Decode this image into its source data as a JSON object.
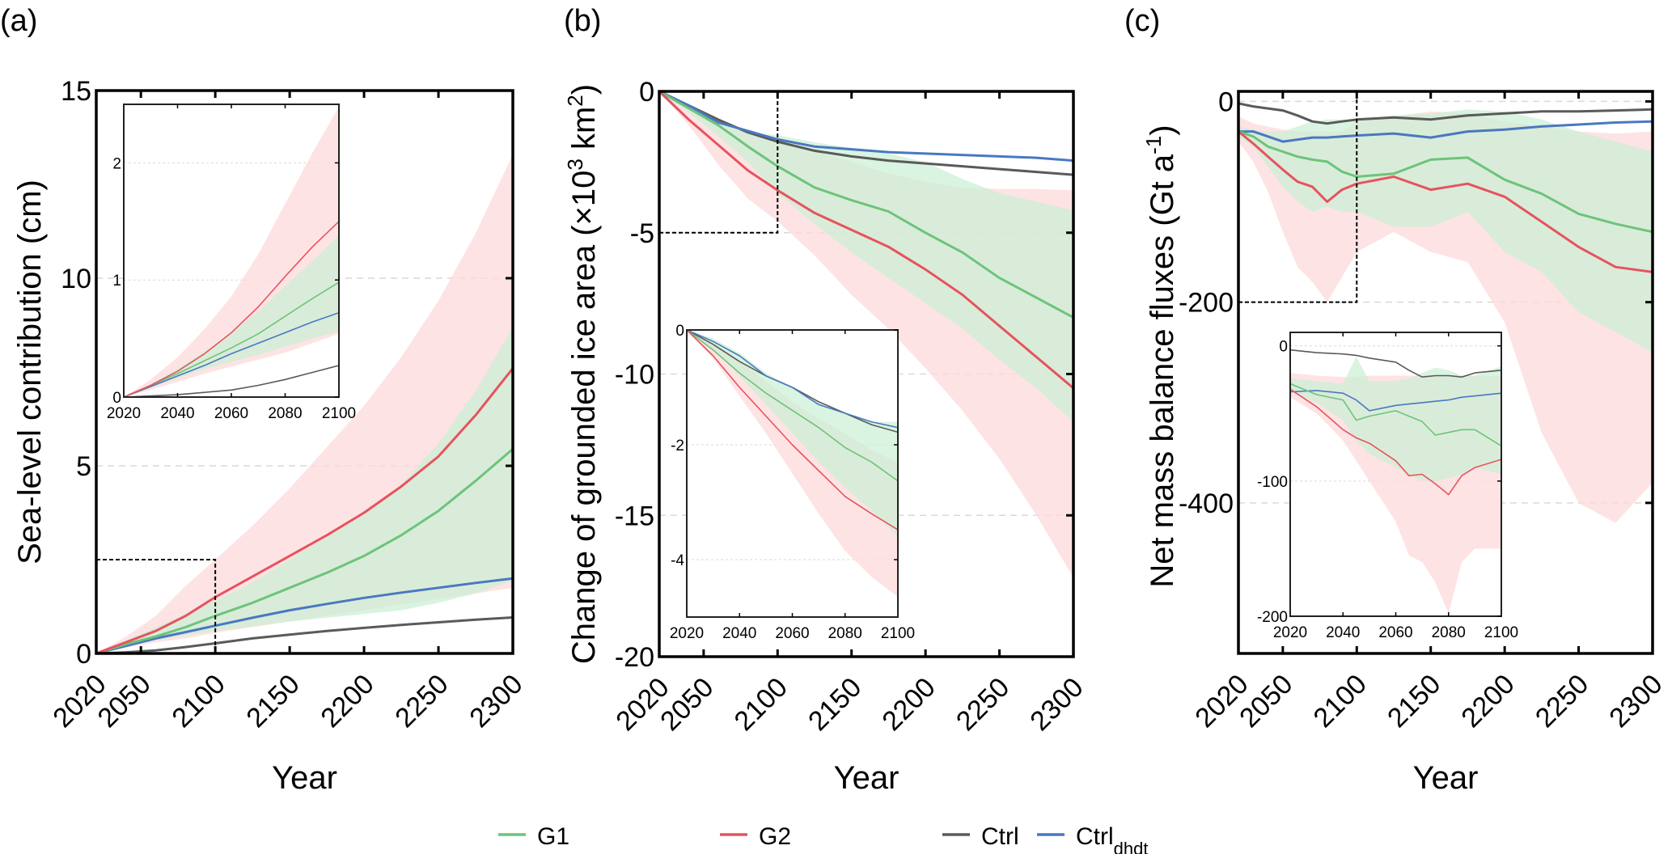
{
  "legend": {
    "items": [
      {
        "key": "G1",
        "label": "G1",
        "sub": "",
        "color": "#6cc47a"
      },
      {
        "key": "G2",
        "label": "G2",
        "sub": "",
        "color": "#e5545e"
      },
      {
        "key": "Ctrl",
        "label": "Ctrl",
        "sub": "",
        "color": "#5a5a5a"
      },
      {
        "key": "Ctrl_dhdt",
        "label": "Ctrl",
        "sub": "dhdt",
        "color": "#4a78c0"
      }
    ],
    "placement": "bottom-center"
  },
  "colors": {
    "G1_band": "#c9f0d4",
    "G2_band": "#fdd9db",
    "overlap_band": "#eddcc9",
    "grid": "#d9d9d9",
    "box": "#000000"
  },
  "chart_data": [
    {
      "id": "a",
      "panel_label": "(a)",
      "type": "line",
      "title": "",
      "xlabel": "Year",
      "ylabel": "Sea-level contribution (cm)",
      "xlim": [
        2020,
        2300
      ],
      "ylim": [
        0,
        15
      ],
      "xticks": [
        2020,
        2050,
        2100,
        2150,
        2200,
        2250,
        2300
      ],
      "yticks": [
        0,
        5,
        10,
        15
      ],
      "ygrid": [
        5,
        10
      ],
      "zoom_box": {
        "x": [
          2020,
          2100
        ],
        "y": [
          0,
          2.5
        ]
      },
      "x": [
        2020,
        2040,
        2060,
        2080,
        2100,
        2125,
        2150,
        2175,
        2200,
        2225,
        2250,
        2275,
        2300
      ],
      "series": [
        {
          "name": "G1",
          "values": [
            0,
            0.25,
            0.45,
            0.7,
            1.0,
            1.35,
            1.75,
            2.15,
            2.6,
            3.15,
            3.8,
            4.6,
            5.45
          ]
        },
        {
          "name": "G2",
          "values": [
            0,
            0.3,
            0.6,
            1.0,
            1.5,
            2.05,
            2.6,
            3.15,
            3.75,
            4.45,
            5.25,
            6.35,
            7.6
          ]
        },
        {
          "name": "Ctrl",
          "values": [
            0,
            0.03,
            0.08,
            0.17,
            0.27,
            0.4,
            0.5,
            0.6,
            0.68,
            0.76,
            0.83,
            0.9,
            0.96
          ]
        },
        {
          "name": "Ctrl_dhdt",
          "values": [
            0,
            0.2,
            0.4,
            0.57,
            0.74,
            0.95,
            1.15,
            1.32,
            1.48,
            1.62,
            1.75,
            1.88,
            2.0
          ]
        }
      ],
      "bands": [
        {
          "name": "G2",
          "lower": [
            0,
            0.15,
            0.3,
            0.4,
            0.55,
            0.7,
            0.85,
            1.0,
            1.15,
            1.3,
            1.45,
            1.6,
            1.75
          ],
          "upper": [
            0,
            0.45,
            1.0,
            1.8,
            2.5,
            3.4,
            4.4,
            5.5,
            6.6,
            7.9,
            9.4,
            11.2,
            13.3
          ]
        },
        {
          "name": "G1",
          "lower": [
            0,
            0.18,
            0.35,
            0.48,
            0.6,
            0.72,
            0.85,
            0.95,
            1.05,
            1.15,
            1.35,
            1.6,
            1.95
          ],
          "upper": [
            0,
            0.35,
            0.7,
            1.05,
            1.4,
            1.9,
            2.5,
            3.1,
            3.7,
            4.5,
            5.6,
            7.0,
            8.7
          ]
        }
      ],
      "inset": {
        "xlim": [
          2020,
          2100
        ],
        "ylim": [
          0,
          2.5
        ],
        "xticks": [
          2020,
          2040,
          2060,
          2080,
          2100
        ],
        "yticks": [
          0,
          1,
          2
        ],
        "ygrid": [
          1,
          2
        ],
        "x": [
          2020,
          2030,
          2040,
          2050,
          2060,
          2070,
          2080,
          2090,
          2100
        ],
        "series": [
          {
            "name": "G1",
            "values": [
              0,
              0.1,
              0.2,
              0.31,
              0.42,
              0.54,
              0.69,
              0.84,
              0.98
            ]
          },
          {
            "name": "G2",
            "values": [
              0,
              0.1,
              0.22,
              0.37,
              0.55,
              0.77,
              1.03,
              1.28,
              1.5
            ]
          },
          {
            "name": "Ctrl",
            "values": [
              0,
              0.01,
              0.02,
              0.04,
              0.06,
              0.1,
              0.15,
              0.21,
              0.27
            ]
          },
          {
            "name": "Ctrl_dhdt",
            "values": [
              0,
              0.09,
              0.18,
              0.27,
              0.37,
              0.46,
              0.55,
              0.64,
              0.72
            ]
          }
        ],
        "bands": [
          {
            "name": "G2",
            "lower": [
              0,
              0.06,
              0.13,
              0.2,
              0.26,
              0.32,
              0.38,
              0.46,
              0.54
            ],
            "upper": [
              0,
              0.15,
              0.34,
              0.58,
              0.86,
              1.22,
              1.65,
              2.08,
              2.48
            ]
          },
          {
            "name": "G1",
            "lower": [
              0,
              0.08,
              0.16,
              0.24,
              0.3,
              0.36,
              0.43,
              0.5,
              0.56
            ],
            "upper": [
              0,
              0.11,
              0.24,
              0.39,
              0.55,
              0.73,
              0.95,
              1.16,
              1.38
            ]
          }
        ]
      }
    },
    {
      "id": "b",
      "panel_label": "(b)",
      "type": "line",
      "title": "",
      "xlabel": "Year",
      "ylabel": "Change of grounded ice area (×10",
      "ylabel_sup": "3",
      "ylabel_mid": " km",
      "ylabel_sup2": "2",
      "ylabel_end": ")",
      "xlim": [
        2020,
        2300
      ],
      "ylim": [
        -20,
        0
      ],
      "xticks": [
        2020,
        2050,
        2100,
        2150,
        2200,
        2250,
        2300
      ],
      "yticks": [
        0,
        -5,
        -10,
        -15,
        -20
      ],
      "ygrid": [
        -5,
        -10,
        -15
      ],
      "zoom_box": {
        "x": [
          2020,
          2100
        ],
        "y": [
          -5,
          0
        ]
      },
      "x": [
        2020,
        2040,
        2060,
        2080,
        2100,
        2125,
        2150,
        2175,
        2200,
        2225,
        2250,
        2275,
        2300
      ],
      "series": [
        {
          "name": "G1",
          "values": [
            0,
            -0.6,
            -1.2,
            -1.95,
            -2.65,
            -3.4,
            -3.85,
            -4.25,
            -5.0,
            -5.7,
            -6.6,
            -7.3,
            -8.0
          ]
        },
        {
          "name": "G2",
          "values": [
            0,
            -1.0,
            -1.9,
            -2.8,
            -3.5,
            -4.3,
            -4.9,
            -5.5,
            -6.3,
            -7.2,
            -8.3,
            -9.4,
            -10.5
          ]
        },
        {
          "name": "Ctrl",
          "values": [
            0,
            -0.5,
            -1.0,
            -1.45,
            -1.78,
            -2.1,
            -2.3,
            -2.45,
            -2.55,
            -2.65,
            -2.75,
            -2.85,
            -2.95
          ]
        },
        {
          "name": "Ctrl_dhdt",
          "values": [
            0,
            -0.5,
            -1.1,
            -1.4,
            -1.7,
            -1.95,
            -2.05,
            -2.15,
            -2.2,
            -2.25,
            -2.3,
            -2.35,
            -2.45
          ]
        }
      ],
      "bands": [
        {
          "name": "G2",
          "lower": [
            0,
            -1.2,
            -2.6,
            -3.8,
            -4.6,
            -5.8,
            -7.2,
            -8.4,
            -9.8,
            -11.3,
            -13.0,
            -15.0,
            -17.2
          ],
          "upper": [
            0,
            -0.55,
            -1.1,
            -1.5,
            -1.8,
            -2.1,
            -2.5,
            -2.9,
            -3.2,
            -3.4,
            -3.45,
            -3.45,
            -3.5
          ]
        },
        {
          "name": "G1",
          "lower": [
            0,
            -0.75,
            -1.6,
            -2.5,
            -3.6,
            -4.7,
            -5.7,
            -6.6,
            -7.5,
            -8.4,
            -9.5,
            -10.5,
            -11.7
          ]
        },
        {
          "name": "G1_upper",
          "upper": [
            0,
            -0.5,
            -1.05,
            -1.5,
            -1.55,
            -1.8,
            -2.0,
            -2.2,
            -2.5,
            -3.1,
            -3.6,
            -3.9,
            -4.2
          ]
        }
      ],
      "inset": {
        "xlim": [
          2020,
          2100
        ],
        "ylim": [
          -5,
          0
        ],
        "xticks": [
          2020,
          2040,
          2060,
          2080,
          2100
        ],
        "yticks": [
          0,
          -2,
          -4
        ],
        "ygrid": [
          -2,
          -4
        ],
        "x": [
          2020,
          2030,
          2040,
          2050,
          2060,
          2070,
          2080,
          2090,
          2100
        ],
        "series": [
          {
            "name": "G1",
            "values": [
              0,
              -0.35,
              -0.75,
              -1.1,
              -1.4,
              -1.7,
              -2.05,
              -2.3,
              -2.63
            ]
          },
          {
            "name": "G2",
            "values": [
              0,
              -0.45,
              -1.0,
              -1.5,
              -2.0,
              -2.45,
              -2.9,
              -3.2,
              -3.48
            ]
          },
          {
            "name": "Ctrl",
            "values": [
              0,
              -0.25,
              -0.55,
              -0.8,
              -1.0,
              -1.25,
              -1.45,
              -1.65,
              -1.78
            ]
          },
          {
            "name": "Ctrl_dhdt",
            "values": [
              0,
              -0.2,
              -0.45,
              -0.8,
              -1.0,
              -1.3,
              -1.45,
              -1.6,
              -1.7
            ]
          }
        ],
        "bands": [
          {
            "name": "G2",
            "lower": [
              0,
              -0.5,
              -1.15,
              -1.8,
              -2.5,
              -3.2,
              -3.85,
              -4.3,
              -4.65
            ],
            "upper": [
              0,
              -0.25,
              -0.55,
              -0.9,
              -1.25,
              -1.55,
              -1.8,
              -2.1,
              -2.3
            ]
          },
          {
            "name": "G1",
            "lower": [
              0,
              -0.35,
              -0.8,
              -1.3,
              -1.8,
              -2.3,
              -2.75,
              -3.15,
              -3.6
            ],
            "upper": [
              0,
              -0.15,
              -0.4,
              -0.75,
              -1.0,
              -1.25,
              -1.45,
              -1.6,
              -1.6
            ]
          }
        ]
      }
    },
    {
      "id": "c",
      "panel_label": "(c)",
      "type": "line",
      "title": "",
      "xlabel": "Year",
      "ylabel": "Net mass balance fluxes (Gt a",
      "ylabel_sup": "-1",
      "ylabel_end": ")",
      "xlim": [
        2020,
        2300
      ],
      "ylim": [
        -550,
        10
      ],
      "xticks": [
        2020,
        2050,
        2100,
        2150,
        2200,
        2250,
        2300
      ],
      "yticks": [
        0,
        -200,
        -400
      ],
      "ygrid": [
        0,
        -200,
        -400
      ],
      "zoom_box": {
        "x": [
          2020,
          2100
        ],
        "y": [
          -200,
          10
        ]
      },
      "x": [
        2020,
        2030,
        2040,
        2050,
        2060,
        2070,
        2080,
        2090,
        2100,
        2125,
        2150,
        2175,
        2200,
        2225,
        2250,
        2275,
        2300
      ],
      "series": [
        {
          "name": "G1",
          "values": [
            -30,
            -35,
            -45,
            -50,
            -55,
            -58,
            -60,
            -70,
            -75,
            -72,
            -58,
            -56,
            -78,
            -92,
            -112,
            -122,
            -130
          ]
        },
        {
          "name": "G2",
          "values": [
            -30,
            -42,
            -55,
            -68,
            -80,
            -85,
            -100,
            -88,
            -82,
            -75,
            -88,
            -82,
            -95,
            -120,
            -145,
            -165,
            -170
          ]
        },
        {
          "name": "Ctrl",
          "values": [
            -2,
            -5,
            -7,
            -9,
            -14,
            -20,
            -22,
            -20,
            -18,
            -16,
            -18,
            -14,
            -12,
            -10,
            -10,
            -9,
            -8
          ]
        },
        {
          "name": "Ctrl_dhdt",
          "values": [
            -30,
            -30,
            -35,
            -40,
            -38,
            -36,
            -36,
            -35,
            -34,
            -32,
            -36,
            -30,
            -28,
            -25,
            -23,
            -21,
            -20
          ]
        }
      ],
      "bands": [
        {
          "name": "G2",
          "lower": [
            -40,
            -60,
            -90,
            -130,
            -165,
            -180,
            -200,
            -175,
            -150,
            -130,
            -150,
            -160,
            -220,
            -330,
            -400,
            -420,
            -380
          ],
          "upper": [
            -15,
            -22,
            -25,
            -28,
            -30,
            -30,
            -30,
            -30,
            -20,
            -15,
            -10,
            -12,
            -20,
            -25,
            -30,
            -32,
            -30
          ]
        },
        {
          "name": "G1",
          "lower": [
            -35,
            -45,
            -65,
            -85,
            -100,
            -110,
            -105,
            -110,
            -110,
            -125,
            -125,
            -110,
            -150,
            -170,
            -210,
            -230,
            -250
          ],
          "upper": [
            -25,
            -28,
            -30,
            -30,
            -25,
            -20,
            -18,
            -18,
            -18,
            -14,
            -12,
            -8,
            -10,
            -18,
            -30,
            -40,
            -50
          ]
        }
      ],
      "inset": {
        "xlim": [
          2020,
          2100
        ],
        "ylim": [
          -200,
          10
        ],
        "xticks": [
          2020,
          2040,
          2060,
          2080,
          2100
        ],
        "yticks": [
          0,
          -100,
          -200
        ],
        "ygrid": [
          0,
          -100
        ],
        "x": [
          2020,
          2030,
          2040,
          2045,
          2050,
          2060,
          2065,
          2070,
          2075,
          2080,
          2085,
          2090,
          2100
        ],
        "series": [
          {
            "name": "G1",
            "values": [
              -28,
              -36,
              -40,
              -55,
              -52,
              -48,
              -52,
              -56,
              -66,
              -64,
              -62,
              -62,
              -74
            ]
          },
          {
            "name": "G2",
            "values": [
              -32,
              -45,
              -62,
              -68,
              -72,
              -85,
              -96,
              -95,
              -102,
              -110,
              -96,
              -90,
              -84
            ]
          },
          {
            "name": "Ctrl",
            "values": [
              -3,
              -5,
              -6,
              -7,
              -9,
              -12,
              -18,
              -23,
              -22,
              -22,
              -23,
              -20,
              -18
            ]
          },
          {
            "name": "Ctrl_dhdt",
            "values": [
              -34,
              -33,
              -35,
              -40,
              -48,
              -44,
              -43,
              -42,
              -41,
              -40,
              -38,
              -37,
              -35
            ]
          }
        ],
        "bands": [
          {
            "name": "G2",
            "lower": [
              -38,
              -50,
              -70,
              -85,
              -100,
              -130,
              -155,
              -160,
              -175,
              -198,
              -160,
              -150,
              -150
            ],
            "upper": [
              -20,
              -22,
              -23,
              -23,
              -22,
              -22,
              -22,
              -22,
              -22,
              -22,
              -22,
              -22,
              -22
            ]
          },
          {
            "name": "G1",
            "lower": [
              -34,
              -42,
              -55,
              -70,
              -80,
              -90,
              -95,
              -100,
              -100,
              -98,
              -95,
              -90,
              -95
            ],
            "upper": [
              -24,
              -26,
              -28,
              -8,
              -26,
              -26,
              -24,
              -20,
              -16,
              -18,
              -22,
              -22,
              -15
            ]
          }
        ]
      }
    }
  ]
}
